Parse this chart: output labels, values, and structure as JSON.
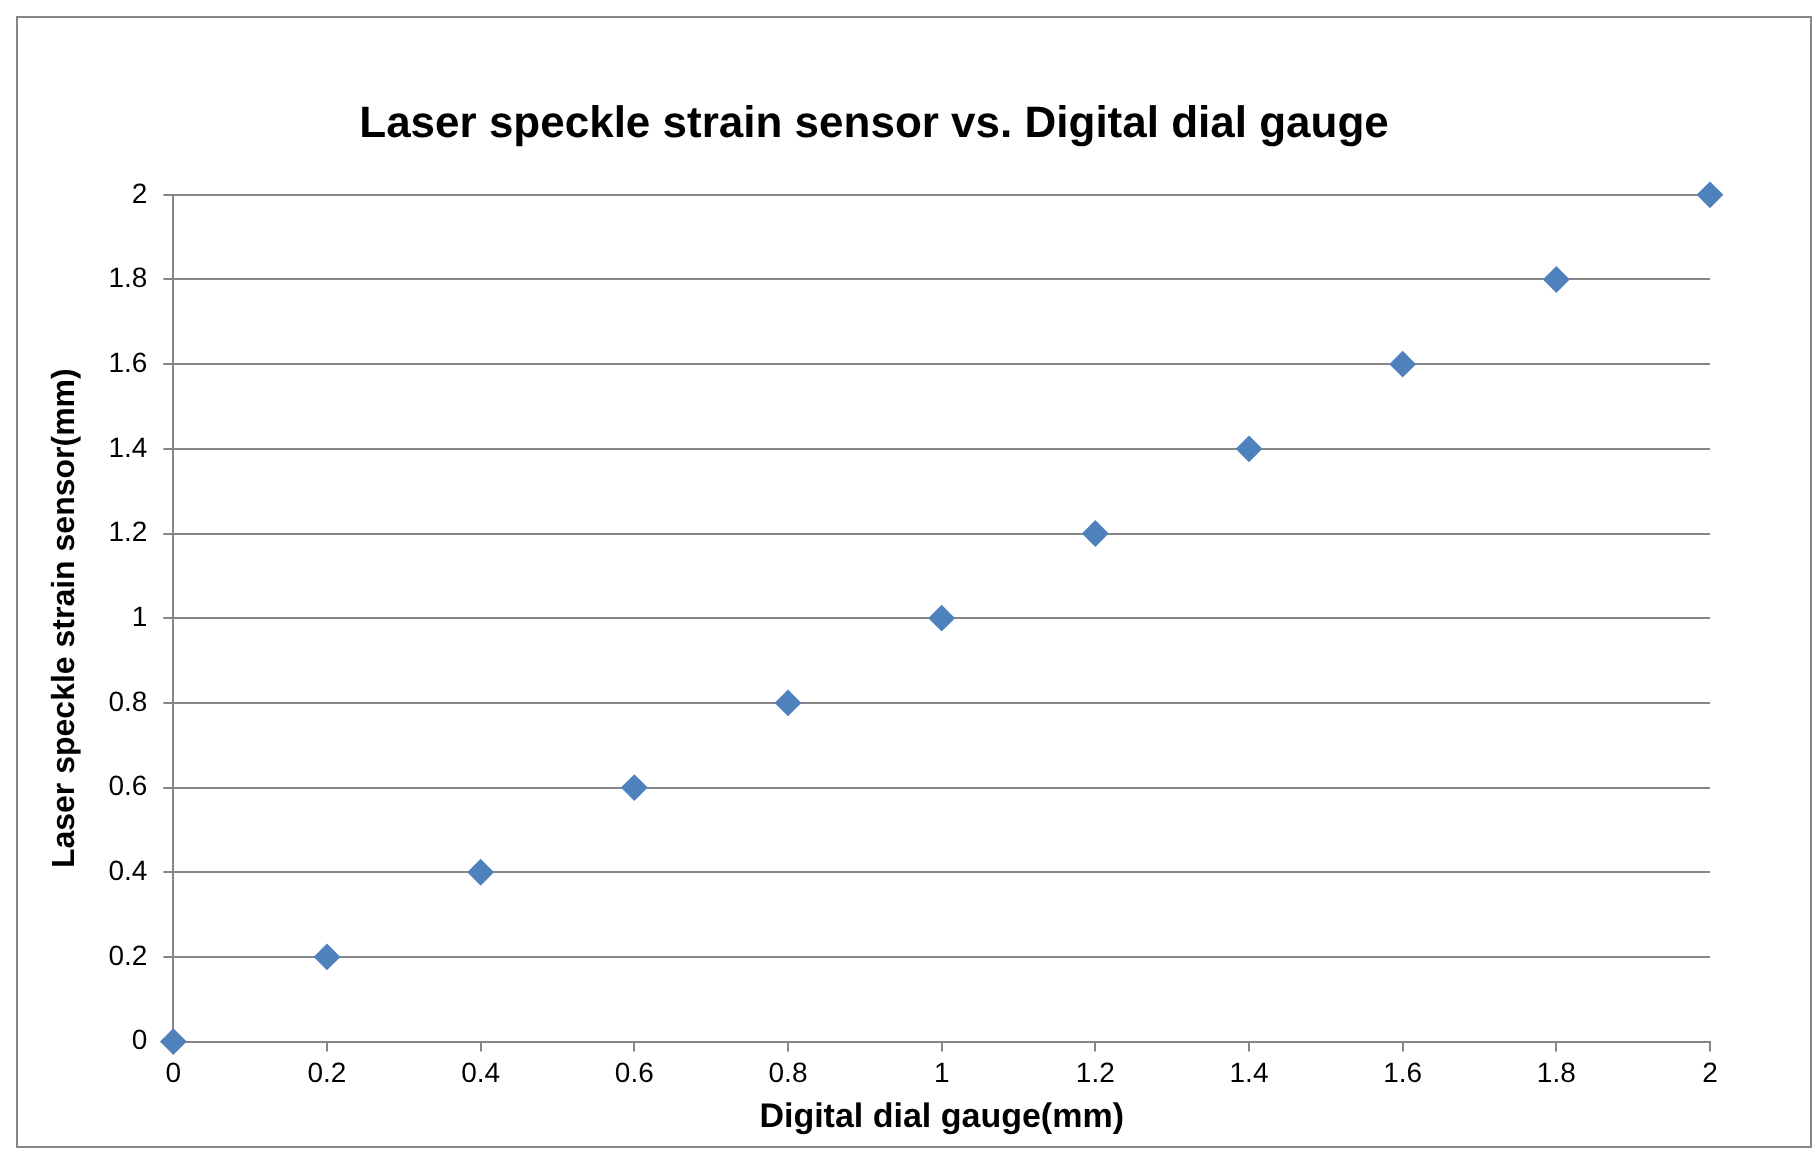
{
  "chart_data": {
    "type": "scatter",
    "title": "Laser speckle strain sensor vs. Digital dial gauge",
    "xlabel": "Digital dial gauge(mm)",
    "ylabel": "Laser speckle strain sensor(mm)",
    "x": [
      0,
      0.2,
      0.4,
      0.6,
      0.8,
      1,
      1.2,
      1.4,
      1.6,
      1.8,
      2
    ],
    "series": [
      {
        "color": "#4f81bd",
        "values": [
          0,
          0.2,
          0.4,
          0.6,
          0.8,
          1,
          1.2,
          1.4,
          1.6,
          1.8,
          2
        ]
      }
    ],
    "xlim": [
      0,
      2
    ],
    "xticks": [
      0,
      0.2,
      0.4,
      0.6,
      0.8,
      1,
      1.2,
      1.4,
      1.6,
      1.8,
      2
    ],
    "ylim": [
      0,
      2
    ],
    "yticks": [
      0,
      0.2,
      0.4,
      0.6,
      0.8,
      1,
      1.2,
      1.4,
      1.6,
      1.8,
      2
    ],
    "grid": "y",
    "legend": false,
    "marker": "diamond"
  }
}
